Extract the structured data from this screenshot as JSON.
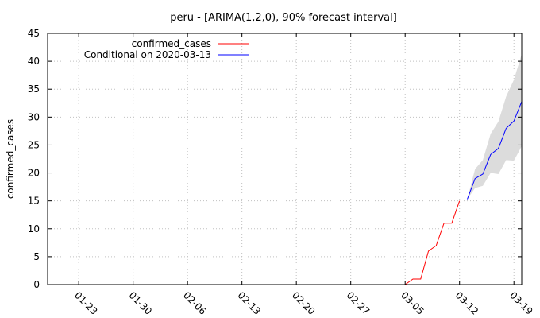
{
  "chart_data": {
    "type": "line",
    "title": "peru -  [ARIMA(1,2,0), 90% forecast interval]",
    "xlabel": "",
    "ylabel": "confirmed_cases",
    "ylim": [
      0,
      45
    ],
    "y_ticks": [
      "0",
      "5",
      "10",
      "15",
      "20",
      "25",
      "30",
      "35",
      "40",
      "45"
    ],
    "x_ticks": [
      "01-23",
      "01-30",
      "02-06",
      "02-13",
      "02-20",
      "02-27",
      "03-05",
      "03-12",
      "03-19"
    ],
    "x_tick_dates": [
      "2020-01-23",
      "2020-01-30",
      "2020-02-06",
      "2020-02-13",
      "2020-02-20",
      "2020-02-27",
      "2020-03-05",
      "2020-03-12",
      "2020-03-19"
    ],
    "xlim": [
      "2020-01-19",
      "2020-03-20"
    ],
    "grid": true,
    "legend_position": "top-left",
    "series": [
      {
        "name": "confirmed_cases",
        "color": "#ff0000",
        "x": [
          "2020-01-22",
          "2020-01-23",
          "2020-01-24",
          "2020-01-25",
          "2020-01-26",
          "2020-01-27",
          "2020-01-28",
          "2020-01-29",
          "2020-01-30",
          "2020-01-31",
          "2020-02-01",
          "2020-02-02",
          "2020-02-03",
          "2020-02-04",
          "2020-02-05",
          "2020-02-06",
          "2020-02-07",
          "2020-02-08",
          "2020-02-09",
          "2020-02-10",
          "2020-02-11",
          "2020-02-12",
          "2020-02-13",
          "2020-02-14",
          "2020-02-15",
          "2020-02-16",
          "2020-02-17",
          "2020-02-18",
          "2020-02-19",
          "2020-02-20",
          "2020-02-21",
          "2020-02-22",
          "2020-02-23",
          "2020-02-24",
          "2020-02-25",
          "2020-02-26",
          "2020-02-27",
          "2020-02-28",
          "2020-02-29",
          "2020-03-01",
          "2020-03-02",
          "2020-03-03",
          "2020-03-04",
          "2020-03-05",
          "2020-03-06",
          "2020-03-07",
          "2020-03-08",
          "2020-03-09",
          "2020-03-10",
          "2020-03-11",
          "2020-03-12"
        ],
        "values": [
          0,
          0,
          0,
          0,
          0,
          0,
          0,
          0,
          0,
          0,
          0,
          0,
          0,
          0,
          0,
          0,
          0,
          0,
          0,
          0,
          0,
          0,
          0,
          0,
          0,
          0,
          0,
          0,
          0,
          0,
          0,
          0,
          0,
          0,
          0,
          0,
          0,
          0,
          0,
          0,
          0,
          0,
          0,
          0,
          1,
          1,
          6,
          7,
          11,
          11,
          15
        ]
      },
      {
        "name": "Conditional on 2020-03-13",
        "color": "#0000ff",
        "x": [
          "2020-03-13",
          "2020-03-14",
          "2020-03-15",
          "2020-03-16",
          "2020-03-17",
          "2020-03-18",
          "2020-03-19",
          "2020-03-20"
        ],
        "values": [
          15.3,
          19.0,
          19.8,
          23.3,
          24.4,
          28.0,
          29.3,
          32.8
        ],
        "interval_low": [
          15.3,
          17.3,
          17.7,
          20.0,
          19.8,
          22.3,
          22.2,
          24.8
        ],
        "interval_high": [
          15.3,
          20.7,
          22.3,
          27.0,
          29.2,
          33.7,
          36.7,
          41.3
        ]
      }
    ]
  },
  "colors": {
    "interval_fill": "#dcdcdc",
    "grid": "#c0c0c0",
    "axes": "#000000"
  }
}
